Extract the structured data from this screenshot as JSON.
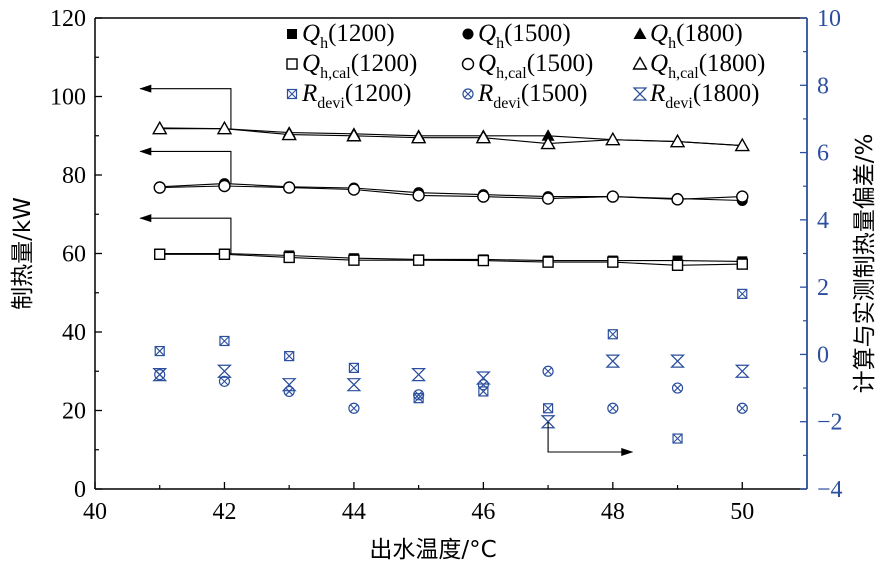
{
  "chart_data": {
    "type": "scatter",
    "xlabel": "出水温度/°C",
    "ylabel_left": "制热量/kW",
    "ylabel_right": "计算与实测制热量偏差/%",
    "x": [
      41,
      42,
      43,
      44,
      45,
      46,
      47,
      48,
      49,
      50
    ],
    "xlim": [
      40,
      51
    ],
    "xticks": [
      "40",
      "42",
      "44",
      "46",
      "48",
      "50"
    ],
    "xtick_values": [
      40,
      42,
      44,
      46,
      48,
      50
    ],
    "ylim_left": [
      0,
      120
    ],
    "yticks_left": [
      "0",
      "20",
      "40",
      "60",
      "80",
      "100",
      "120"
    ],
    "ytick_values_left": [
      0,
      20,
      40,
      60,
      80,
      100,
      120
    ],
    "ylim_right": [
      -4,
      10
    ],
    "yticks_right": [
      "−4",
      "−2",
      "0",
      "2",
      "4",
      "6",
      "8",
      "10"
    ],
    "ytick_values_right": [
      -4,
      -2,
      0,
      2,
      4,
      6,
      8,
      10
    ],
    "grid": false,
    "legend_position": "top",
    "colors": {
      "black": "#000000",
      "blue": "#2b4f9e"
    },
    "series": [
      {
        "key": "Qh1200",
        "axis": "left",
        "marker": "square-filled",
        "color": "#000000",
        "connect": true,
        "values": [
          60.0,
          60.0,
          59.5,
          58.8,
          58.5,
          58.5,
          58.2,
          58.2,
          58.2,
          58.0
        ]
      },
      {
        "key": "Qh1500",
        "axis": "left",
        "marker": "circle-filled",
        "color": "#000000",
        "connect": true,
        "values": [
          77.0,
          77.8,
          77.0,
          76.7,
          75.5,
          75.0,
          74.5,
          74.5,
          74.0,
          73.5
        ]
      },
      {
        "key": "Qh1800",
        "axis": "left",
        "marker": "triangle-filled",
        "color": "#000000",
        "connect": true,
        "values": [
          92.0,
          91.8,
          90.8,
          90.5,
          90.0,
          90.0,
          90.0,
          89.0,
          88.5,
          87.5
        ]
      },
      {
        "key": "Qcal1200",
        "axis": "left",
        "marker": "square-open",
        "color": "#000000",
        "connect": true,
        "values": [
          59.8,
          59.8,
          59.0,
          58.3,
          58.3,
          58.2,
          57.8,
          57.8,
          57.0,
          57.3
        ]
      },
      {
        "key": "Qcal1500",
        "axis": "left",
        "marker": "circle-open",
        "color": "#000000",
        "connect": true,
        "values": [
          76.8,
          77.2,
          76.8,
          76.3,
          74.8,
          74.5,
          74.0,
          74.5,
          73.8,
          74.5
        ]
      },
      {
        "key": "Qcal1800",
        "axis": "left",
        "marker": "triangle-open",
        "color": "#000000",
        "connect": true,
        "values": [
          91.8,
          91.8,
          90.3,
          90.0,
          89.5,
          89.5,
          88.0,
          89.0,
          88.5,
          87.5
        ]
      },
      {
        "key": "Rdevi1200",
        "axis": "right",
        "marker": "square-x",
        "color": "#2b4f9e",
        "connect": false,
        "values": [
          0.1,
          0.4,
          -0.05,
          -0.4,
          -1.3,
          -1.1,
          -1.6,
          0.6,
          -2.5,
          1.8
        ]
      },
      {
        "key": "Rdevi1500",
        "axis": "right",
        "marker": "circle-x",
        "color": "#2b4f9e",
        "connect": false,
        "values": [
          -0.6,
          -0.8,
          -1.1,
          -1.6,
          -1.2,
          -0.9,
          -0.5,
          -1.6,
          -1.0,
          -1.6
        ]
      },
      {
        "key": "Rdevi1800",
        "axis": "right",
        "marker": "bowtie",
        "color": "#2b4f9e",
        "connect": false,
        "values": [
          -0.6,
          -0.5,
          -0.9,
          -0.9,
          -0.6,
          -0.7,
          -2.0,
          -0.2,
          -0.2,
          -0.5
        ]
      }
    ],
    "legend": [
      {
        "series": "Qh1200",
        "main": "Q",
        "sub": "h",
        "rest": "(1200)"
      },
      {
        "series": "Qh1500",
        "main": "Q",
        "sub": "h",
        "rest": "(1500)"
      },
      {
        "series": "Qh1800",
        "main": "Q",
        "sub": "h",
        "rest": "(1800)"
      },
      {
        "series": "Qcal1200",
        "main": "Q",
        "sub": "h,cal",
        "rest": "(1200)"
      },
      {
        "series": "Qcal1500",
        "main": "Q",
        "sub": "h,cal",
        "rest": "(1500)"
      },
      {
        "series": "Qcal1800",
        "main": "Q",
        "sub": "h,cal",
        "rest": "(1800)"
      },
      {
        "series": "Rdevi1200",
        "main": "R",
        "sub": "devi",
        "rest": "(1200)"
      },
      {
        "series": "Rdevi1500",
        "main": "R",
        "sub": "devi",
        "rest": "(1500)"
      },
      {
        "series": "Rdevi1800",
        "main": "R",
        "sub": "devi",
        "rest": "(1800)"
      }
    ],
    "annotations": [
      {
        "name": "arrow-1800-left-axis",
        "from": [
          42.1,
          91.8
        ],
        "corner": [
          42.1,
          102
        ],
        "to": [
          40.7,
          102
        ],
        "axis": "left"
      },
      {
        "name": "arrow-1500-left-axis",
        "from": [
          42.1,
          77.8
        ],
        "corner": [
          42.1,
          86
        ],
        "to": [
          40.7,
          86
        ],
        "axis": "left"
      },
      {
        "name": "arrow-1200-left-axis",
        "from": [
          42.1,
          60.0
        ],
        "corner": [
          42.1,
          69
        ],
        "to": [
          40.7,
          69
        ],
        "axis": "left"
      },
      {
        "name": "arrow-deviation-right-axis",
        "from": [
          47.0,
          -2.0
        ],
        "corner": [
          47.0,
          -2.9
        ],
        "to": [
          48.3,
          -2.9
        ],
        "axis": "right"
      }
    ]
  }
}
